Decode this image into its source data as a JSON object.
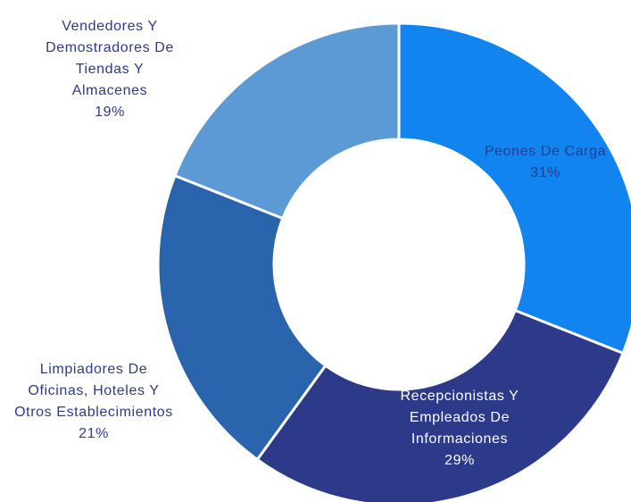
{
  "chart_data": {
    "type": "donut",
    "categories": [
      "Peones De Carga",
      "Recepcionistas Y Empleados De Informaciones",
      "Limpiadores De Oficinas, Hoteles Y Otros Establecimientos",
      "Vendedores Y Demostradores De Tiendas Y Almacenes"
    ],
    "values": [
      31,
      29,
      21,
      19
    ],
    "value_labels": [
      "31%",
      "29%",
      "21%",
      "19%"
    ],
    "colors": [
      "#1184f0",
      "#2d3a8a",
      "#2a64ac",
      "#5b9ad4"
    ]
  }
}
